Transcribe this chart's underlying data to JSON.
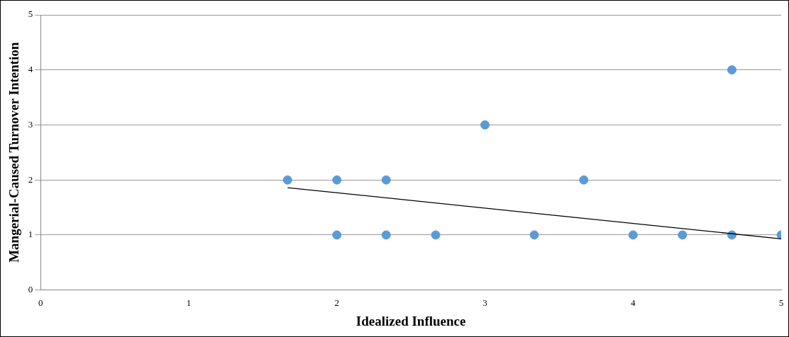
{
  "chart_data": {
    "type": "scatter",
    "xlabel": "Idealized Influence",
    "ylabel": "Mangerial-Caused Turnover Intention",
    "series": [
      {
        "color": "#5b9bd5",
        "marker": "circle",
        "x": [
          1.667,
          2,
          2.333,
          3,
          3.667,
          4.667,
          2,
          2.333,
          2.667,
          3.333,
          4,
          4.333,
          4.667,
          5
        ],
        "values": [
          2,
          2,
          2,
          3,
          2,
          4,
          1,
          1,
          1,
          1,
          1,
          1,
          1,
          1
        ]
      },
      {
        "type": "line",
        "color": "#000000",
        "marker": "none",
        "x": [
          1.667,
          5
        ],
        "values": [
          1.86,
          0.93
        ]
      }
    ],
    "xlim": [
      0,
      5
    ],
    "xticks": [
      0,
      1,
      2,
      3,
      4,
      5
    ],
    "ylim": [
      0,
      5
    ],
    "yticks": [
      0,
      1,
      2,
      3,
      4,
      5
    ],
    "grid": "y",
    "legend": false
  }
}
